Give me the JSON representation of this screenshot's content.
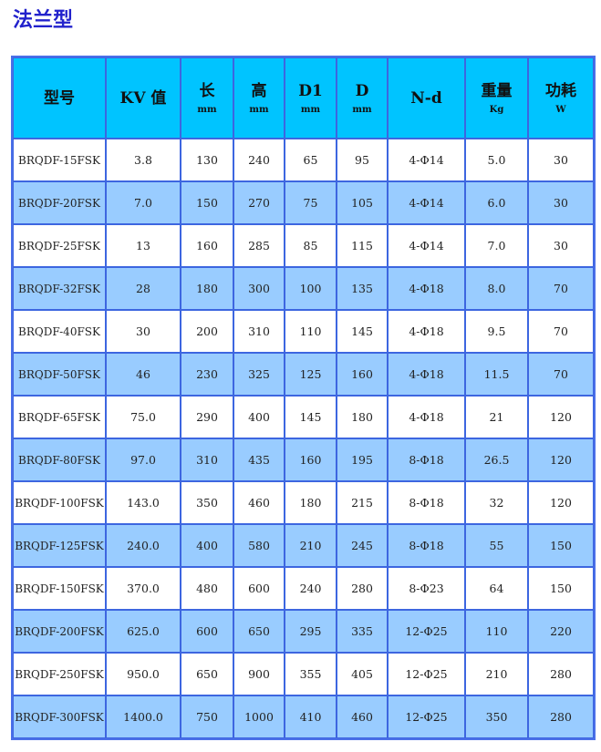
{
  "title": "法兰型",
  "colors": {
    "header_bg": "#00c4ff",
    "alt_row_bg": "#99ccff",
    "border": "#3d66e0",
    "title": "#2222cc"
  },
  "headers": [
    {
      "label": "型号",
      "unit": ""
    },
    {
      "label": "KV 值",
      "unit": ""
    },
    {
      "label": "长",
      "unit": "mm"
    },
    {
      "label": "高",
      "unit": "mm"
    },
    {
      "label": "D1",
      "unit": "mm"
    },
    {
      "label": "D",
      "unit": "mm"
    },
    {
      "label": "N-d",
      "unit": ""
    },
    {
      "label": "重量",
      "unit": "Kg"
    },
    {
      "label": "功耗",
      "unit": "W"
    }
  ],
  "rows": [
    [
      "BRQDF-15FSK",
      "3.8",
      "130",
      "240",
      "65",
      "95",
      "4-Φ14",
      "5.0",
      "30"
    ],
    [
      "BRQDF-20FSK",
      "7.0",
      "150",
      "270",
      "75",
      "105",
      "4-Φ14",
      "6.0",
      "30"
    ],
    [
      "BRQDF-25FSK",
      "13",
      "160",
      "285",
      "85",
      "115",
      "4-Φ14",
      "7.0",
      "30"
    ],
    [
      "BRQDF-32FSK",
      "28",
      "180",
      "300",
      "100",
      "135",
      "4-Φ18",
      "8.0",
      "70"
    ],
    [
      "BRQDF-40FSK",
      "30",
      "200",
      "310",
      "110",
      "145",
      "4-Φ18",
      "9.5",
      "70"
    ],
    [
      "BRQDF-50FSK",
      "46",
      "230",
      "325",
      "125",
      "160",
      "4-Φ18",
      "11.5",
      "70"
    ],
    [
      "BRQDF-65FSK",
      "75.0",
      "290",
      "400",
      "145",
      "180",
      "4-Φ18",
      "21",
      "120"
    ],
    [
      "BRQDF-80FSK",
      "97.0",
      "310",
      "435",
      "160",
      "195",
      "8-Φ18",
      "26.5",
      "120"
    ],
    [
      "BRQDF-100FSK",
      "143.0",
      "350",
      "460",
      "180",
      "215",
      "8-Φ18",
      "32",
      "120"
    ],
    [
      "BRQDF-125FSK",
      "240.0",
      "400",
      "580",
      "210",
      "245",
      "8-Φ18",
      "55",
      "150"
    ],
    [
      "BRQDF-150FSK",
      "370.0",
      "480",
      "600",
      "240",
      "280",
      "8-Φ23",
      "64",
      "150"
    ],
    [
      "BRQDF-200FSK",
      "625.0",
      "600",
      "650",
      "295",
      "335",
      "12-Φ25",
      "110",
      "220"
    ],
    [
      "BRQDF-250FSK",
      "950.0",
      "650",
      "900",
      "355",
      "405",
      "12-Φ25",
      "210",
      "280"
    ],
    [
      "BRQDF-300FSK",
      "1400.0",
      "750",
      "1000",
      "410",
      "460",
      "12-Φ25",
      "350",
      "280"
    ]
  ]
}
